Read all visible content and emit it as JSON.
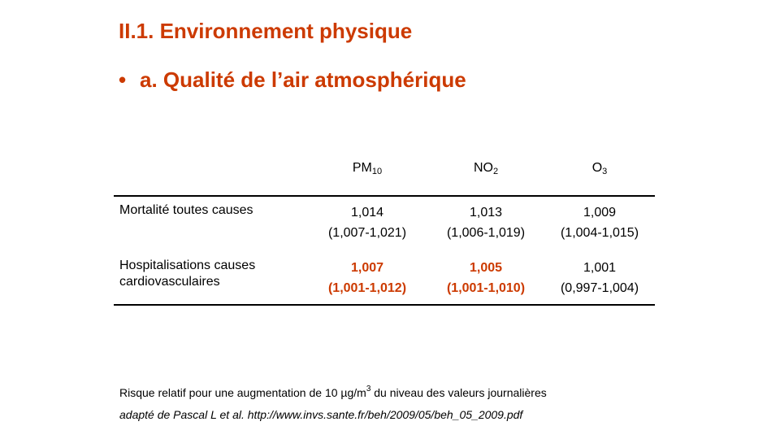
{
  "title": "II.1. Environnement physique",
  "bullet": {
    "marker": "•",
    "text": "a. Qualité de l’air atmosphérique"
  },
  "table": {
    "columns": [
      {
        "base": "PM",
        "sub": "10"
      },
      {
        "base": "NO",
        "sub": "2"
      },
      {
        "base": "O",
        "sub": "3"
      }
    ],
    "rows": [
      {
        "label": "Mortalité toutes causes",
        "cells": [
          {
            "value": "1,014",
            "ci": "(1,007-1,021)",
            "highlight": false
          },
          {
            "value": "1,013",
            "ci": "(1,006-1,019)",
            "highlight": false
          },
          {
            "value": "1,009",
            "ci": "(1,004-1,015)",
            "highlight": false
          }
        ]
      },
      {
        "label": "Hospitalisations causes cardiovasculaires",
        "cells": [
          {
            "value": "1,007",
            "ci": "(1,001-1,012)",
            "highlight": true
          },
          {
            "value": "1,005",
            "ci": "(1,001-1,010)",
            "highlight": true
          },
          {
            "value": "1,001",
            "ci": "(0,997-1,004)",
            "highlight": false
          }
        ]
      }
    ]
  },
  "note": {
    "before": "Risque relatif pour une augmentation  de 10 µg/m",
    "sup": "3",
    "after": " du niveau des valeurs journalières"
  },
  "source": "adapté de Pascal L et al. http://www.invs.sante.fr/beh/2009/05/beh_05_2009.pdf",
  "colors": {
    "accent": "#cc3a00",
    "text": "#000000",
    "background": "#ffffff"
  }
}
